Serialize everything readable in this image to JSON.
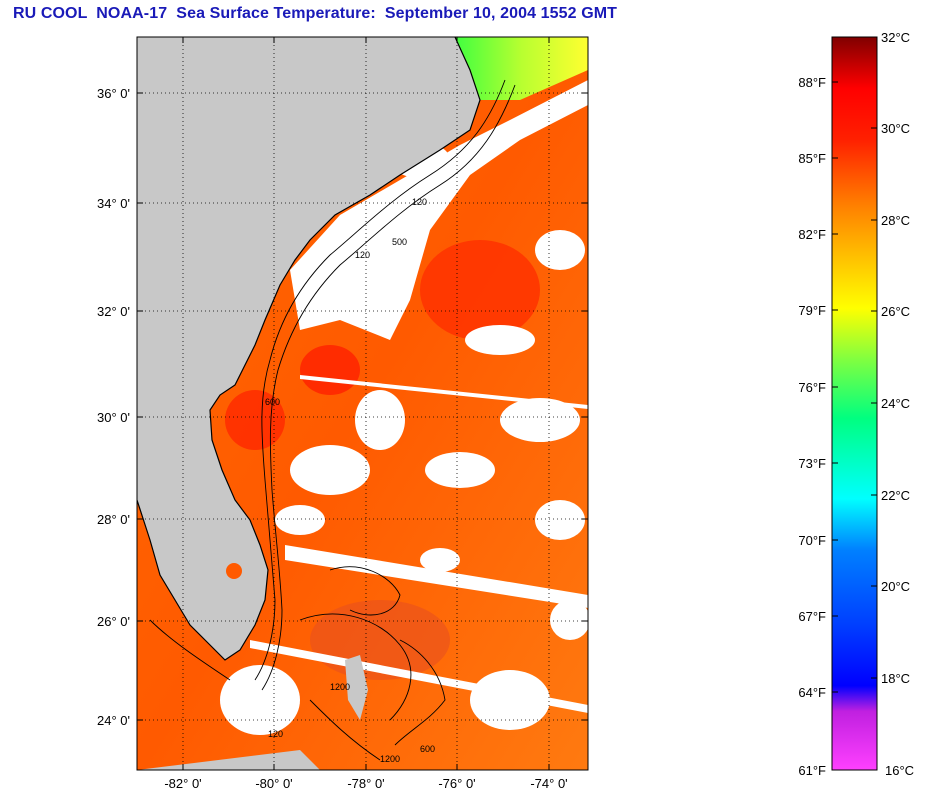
{
  "title": "RU COOL  NOAA-17  Sea Surface Temperature:  September 10, 2004 1552 GMT",
  "map": {
    "lat_labels": [
      "36° 0'",
      "34° 0'",
      "32° 0'",
      "30° 0'",
      "28° 0'",
      "26° 0'",
      "24° 0'"
    ],
    "lon_labels": [
      "-82° 0'",
      "-80° 0'",
      "-78° 0'",
      "-76° 0'",
      "-74° 0'"
    ],
    "contour_labels": [
      "120",
      "500",
      "120",
      "600",
      "1200",
      "1200",
      "120",
      "600"
    ],
    "colors": {
      "land": "#c8c8c8",
      "cloud": "#ffffff",
      "frame": "#000000",
      "grid": "#000000"
    }
  },
  "colorbar": {
    "fahrenheit_labels": [
      "88°F",
      "85°F",
      "82°F",
      "79°F",
      "76°F",
      "73°F",
      "70°F",
      "67°F",
      "64°F",
      "61°F"
    ],
    "celsius_labels": [
      "32°C",
      "30°C",
      "28°C",
      "26°C",
      "24°C",
      "22°C",
      "20°C",
      "18°C",
      "16°C"
    ],
    "range_c": [
      16,
      32
    ]
  }
}
